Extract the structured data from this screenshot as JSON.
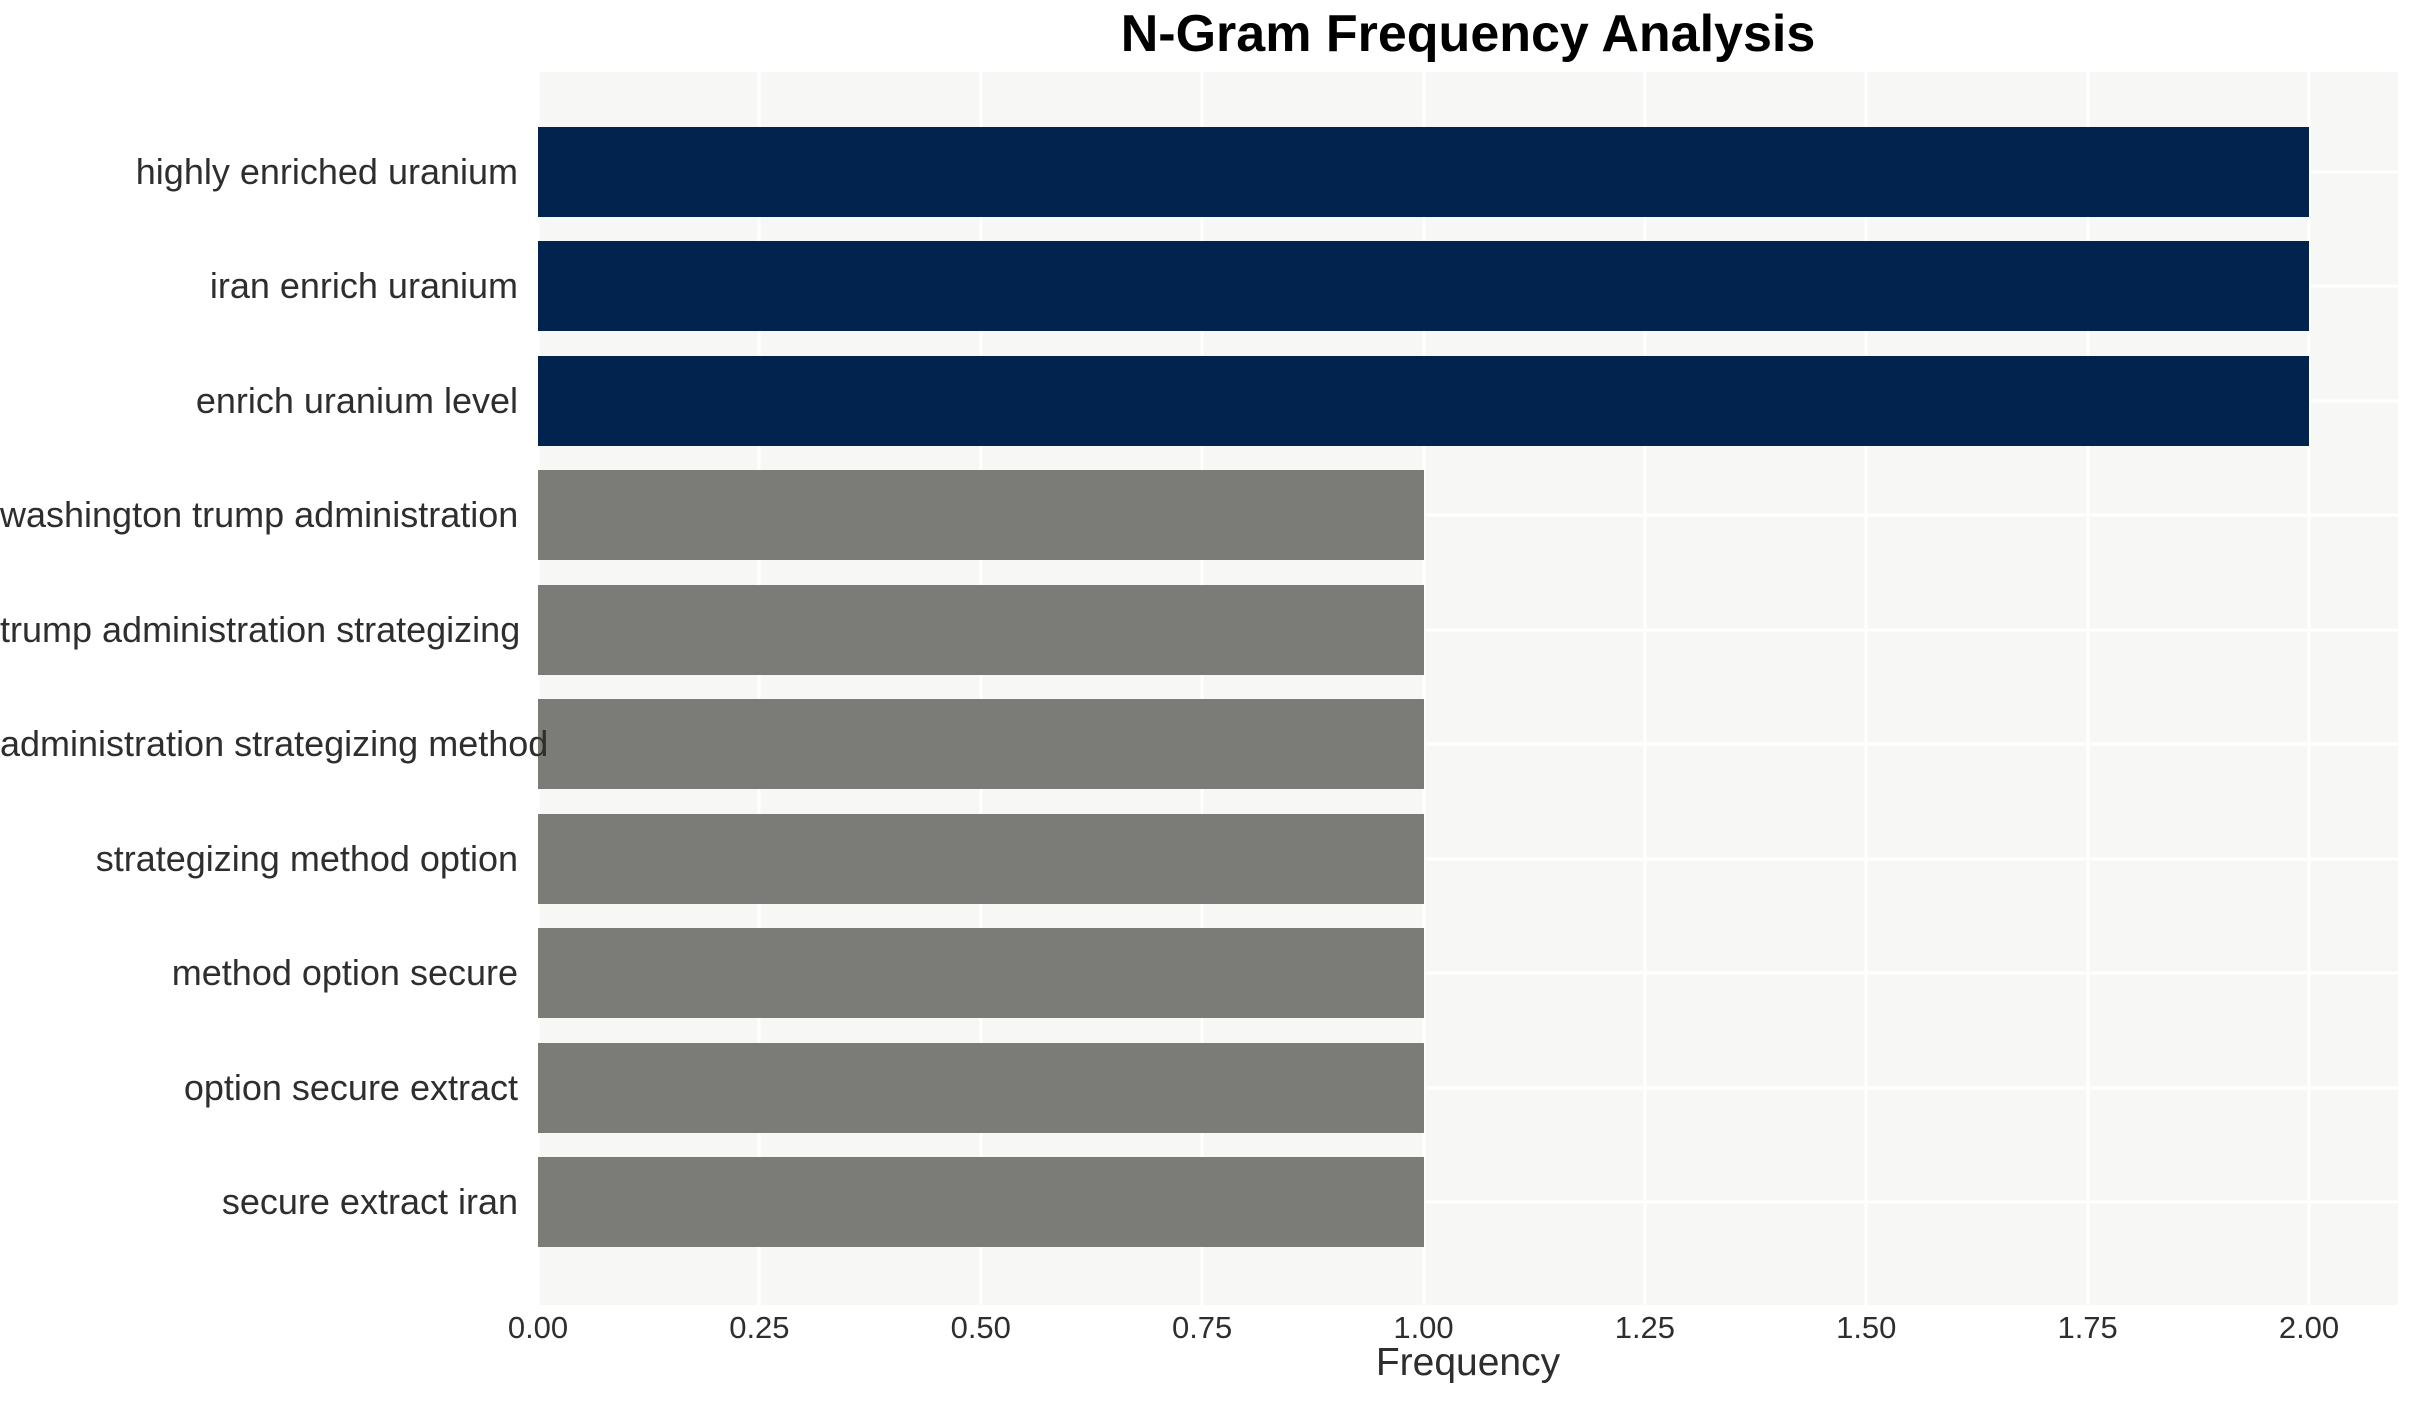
{
  "chart_data": {
    "type": "bar",
    "orientation": "horizontal",
    "title": "N-Gram Frequency Analysis",
    "xlabel": "Frequency",
    "ylabel": "",
    "categories": [
      "highly enriched uranium",
      "iran enrich uranium",
      "enrich uranium level",
      "washington trump administration",
      "trump administration strategizing",
      "administration strategizing method",
      "strategizing method option",
      "method option secure",
      "option secure extract",
      "secure extract iran"
    ],
    "values": [
      2,
      2,
      2,
      1,
      1,
      1,
      1,
      1,
      1,
      1
    ],
    "bar_colors": [
      "#02234e",
      "#02234e",
      "#02234e",
      "#7b7b78",
      "#7b7b78",
      "#7b7b78",
      "#7b7b78",
      "#7b7b78",
      "#7b7b78",
      "#7b7b78"
    ],
    "x_ticks": [
      0,
      0.25,
      0.5,
      0.75,
      1.0,
      1.25,
      1.5,
      1.75,
      2.0
    ],
    "x_tick_labels": [
      "0.00",
      "0.25",
      "0.50",
      "0.75",
      "1.00",
      "1.25",
      "1.50",
      "1.75",
      "2.00"
    ],
    "xlim": [
      0,
      2.1
    ],
    "grid": "on",
    "legend": null,
    "colors": {
      "high_frequency_bar": "#02234e",
      "low_frequency_bar": "#7b7b78",
      "plot_background": "#f7f7f6",
      "grid_line": "#ffffff",
      "tick_text": "#2e2e2e",
      "title_text": "#000000"
    }
  }
}
